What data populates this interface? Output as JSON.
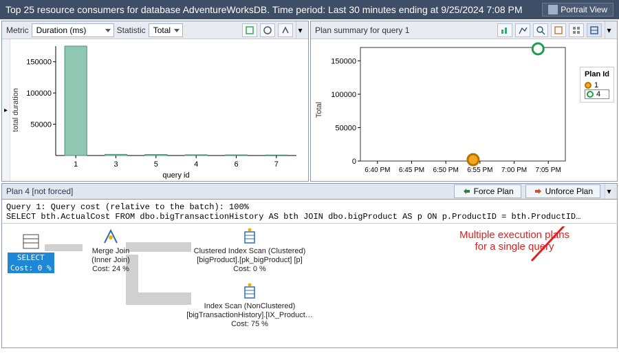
{
  "titlebar": {
    "title": "Top 25 resource consumers for database AdventureWorksDB. Time period: Last 30 minutes ending at 9/25/2024 7:08 PM",
    "portrait_label": "Portrait View"
  },
  "left_panel": {
    "metric_label": "Metric",
    "metric_value": "Duration (ms)",
    "stat_label": "Statistic",
    "stat_value": "Total",
    "y_axis_label": "total duration",
    "x_axis_label": "query id",
    "bar_chart": {
      "type": "bar",
      "categories": [
        "1",
        "3",
        "5",
        "4",
        "6",
        "7"
      ],
      "values": [
        175000,
        1800,
        1600,
        1200,
        1000,
        800
      ],
      "ylim": [
        0,
        175000
      ],
      "yticks": [
        50000,
        100000,
        150000
      ],
      "background_color": "#ffffff",
      "bar_fill": "#8fc7b2",
      "bar_stroke": "#4b8f78",
      "axis_color": "#000000",
      "grid_color": "#cccccc",
      "bar_width": 0.55
    }
  },
  "right_panel": {
    "title": "Plan summary for query 1",
    "y_axis_label": "Total",
    "legend_title": "Plan Id",
    "legend_items": [
      {
        "label": "1",
        "color": "#f5a623",
        "ring": "#b37400"
      },
      {
        "label": "4",
        "color": "#ffffff",
        "ring": "#1a9e4b",
        "selected": true
      }
    ],
    "scatter": {
      "type": "scatter",
      "ylim": [
        0,
        170000
      ],
      "yticks": [
        0,
        50000,
        100000,
        150000
      ],
      "x_labels": [
        "6:40 PM",
        "6:45 PM",
        "6:50 PM",
        "6:55 PM",
        "7:00 PM",
        "7:05 PM"
      ],
      "points": [
        {
          "x": 3.3,
          "y": 2000,
          "fill": "#f5a623",
          "ring": "#b37400"
        },
        {
          "x": 5.2,
          "y": 168000,
          "fill": "#ffffff",
          "ring": "#1a9e4b"
        }
      ],
      "background_color": "#ffffff",
      "border_color": "#333333"
    }
  },
  "bottom": {
    "plan_label": "Plan 4 [not forced]",
    "force_btn": "Force Plan",
    "unforce_btn": "Unforce Plan",
    "sql_line1": "Query 1: Query cost (relative to the batch): 100%",
    "sql_line2": "SELECT bth.ActualCost FROM dbo.bigTransactionHistory AS bth JOIN dbo.bigProduct AS p ON p.ProductID = bth.ProductID…",
    "nodes": {
      "select": {
        "title": "SELECT",
        "cost": "Cost: 0 %"
      },
      "merge": {
        "title": "Merge Join",
        "sub": "(Inner Join)",
        "cost": "Cost: 24 %"
      },
      "cix": {
        "title": "Clustered Index Scan (Clustered)",
        "sub": "[bigProduct].[pk_bigProduct] [p]",
        "cost": "Cost: 0 %"
      },
      "ix": {
        "title": "Index Scan (NonClustered)",
        "sub": "[bigTransactionHistory].[IX_Product…",
        "cost": "Cost: 75 %"
      }
    },
    "annotation": "Multiple execution plans\nfor a single query",
    "annotation_color": "#e02020",
    "arrow_color": "#d0d0d0",
    "select_bg": "#1e88d6",
    "select_fg": "#ffffff"
  }
}
